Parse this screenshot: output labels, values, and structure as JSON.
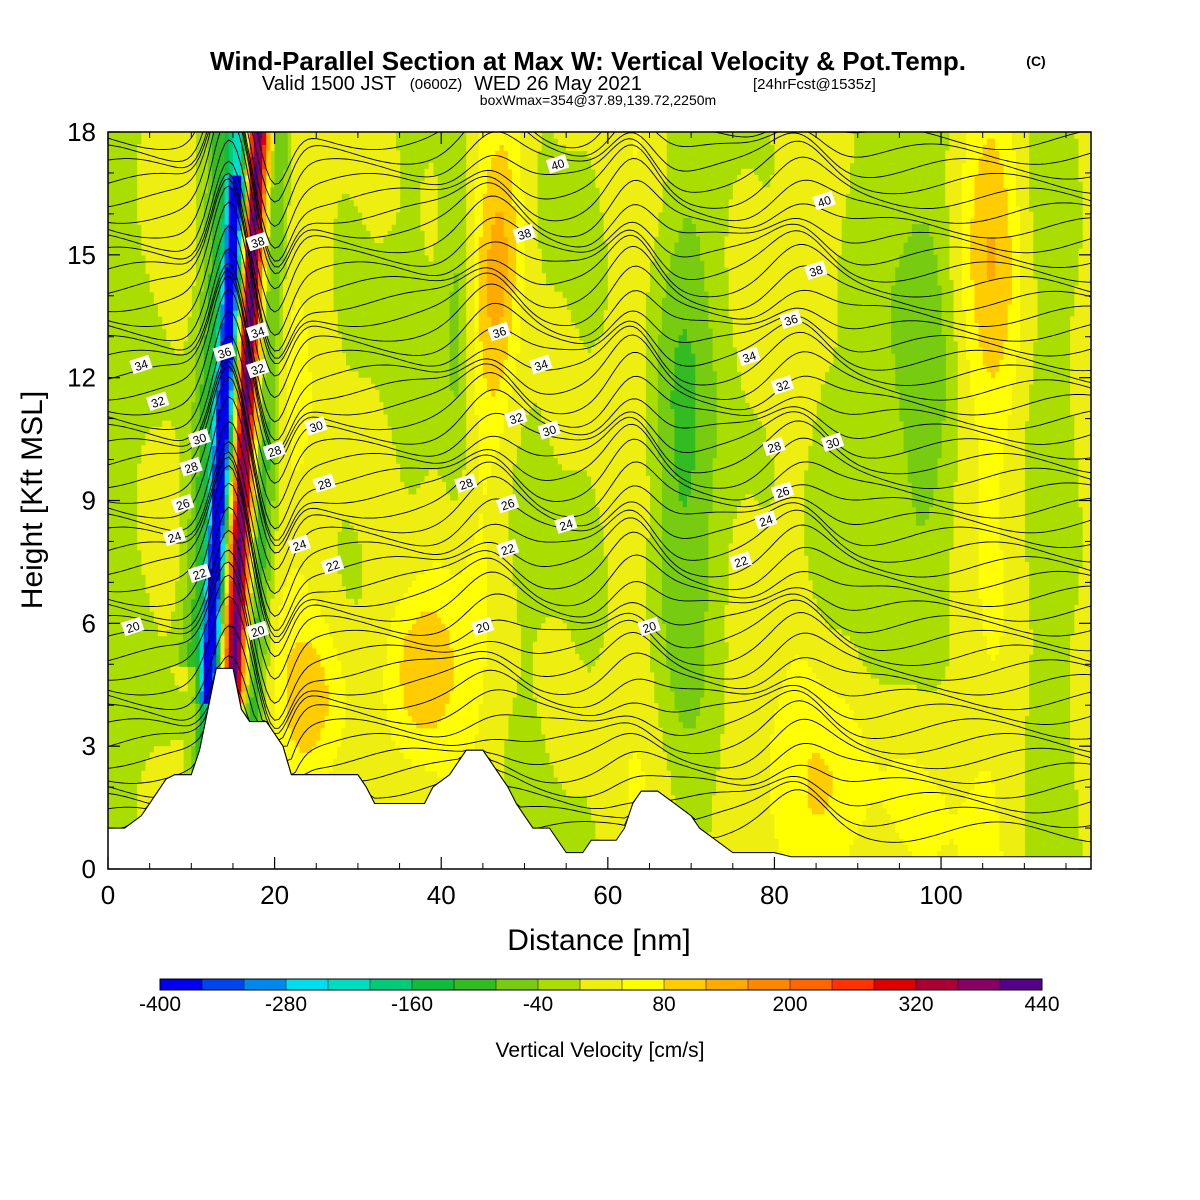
{
  "title": {
    "main": "Wind-Parallel Section at Max W: Vertical Velocity & Pot.Temp.",
    "copyright": "(C)",
    "valid_prefix": "Valid 1500 JST",
    "valid_zulu": "(0600Z)",
    "valid_date": "WED 26 May 2021",
    "forecast": "[24hrFcst@1535z]",
    "boxmax": "boxWmax=354@37.89,139.72,2250m"
  },
  "chart_data": {
    "type": "heatmap",
    "xlabel": "Distance [nm]",
    "ylabel": "Height [Kft MSL]",
    "xlim": [
      0,
      118
    ],
    "ylim": [
      0,
      18
    ],
    "x_ticks": [
      0,
      20,
      40,
      60,
      80,
      100
    ],
    "y_ticks": [
      0,
      3,
      6,
      9,
      12,
      15,
      18
    ],
    "colorbar": {
      "title": "Vertical Velocity [cm/s]",
      "min": -400,
      "max": 440,
      "step": 40,
      "tick_labels": [
        "-400",
        "-280",
        "-160",
        "-40",
        "80",
        "200",
        "320",
        "440"
      ],
      "colors": [
        "#0000ee",
        "#0044ee",
        "#0088ee",
        "#00ddee",
        "#00dcc0",
        "#00cc77",
        "#10bb40",
        "#33bb22",
        "#77cc11",
        "#aadd00",
        "#eeee11",
        "#ffff00",
        "#ffcc00",
        "#ffaa00",
        "#ff8800",
        "#ff6600",
        "#ff3300",
        "#dd0000",
        "#aa0033",
        "#880066",
        "#550088"
      ]
    },
    "terrain_kft": [
      [
        0,
        1.0
      ],
      [
        2,
        1.0
      ],
      [
        4,
        1.3
      ],
      [
        5,
        1.6
      ],
      [
        6,
        1.9
      ],
      [
        7,
        2.2
      ],
      [
        8,
        2.3
      ],
      [
        10,
        2.3
      ],
      [
        11,
        2.9
      ],
      [
        12,
        3.9
      ],
      [
        13,
        4.9
      ],
      [
        15,
        4.9
      ],
      [
        16,
        3.9
      ],
      [
        17,
        3.6
      ],
      [
        19,
        3.6
      ],
      [
        20,
        3.3
      ],
      [
        21,
        3.0
      ],
      [
        22,
        2.3
      ],
      [
        30,
        2.3
      ],
      [
        31,
        2.0
      ],
      [
        32,
        1.6
      ],
      [
        38,
        1.6
      ],
      [
        39,
        2.0
      ],
      [
        41,
        2.3
      ],
      [
        42,
        2.6
      ],
      [
        43,
        2.9
      ],
      [
        45,
        2.9
      ],
      [
        46,
        2.6
      ],
      [
        47,
        2.3
      ],
      [
        48,
        2.0
      ],
      [
        49,
        1.6
      ],
      [
        50,
        1.3
      ],
      [
        51,
        1.0
      ],
      [
        53,
        1.0
      ],
      [
        54,
        0.7
      ],
      [
        55,
        0.4
      ],
      [
        57,
        0.4
      ],
      [
        58,
        0.7
      ],
      [
        61,
        0.7
      ],
      [
        62,
        1.0
      ],
      [
        63,
        1.6
      ],
      [
        64,
        1.9
      ],
      [
        66,
        1.9
      ],
      [
        68,
        1.6
      ],
      [
        70,
        1.3
      ],
      [
        71,
        1.0
      ],
      [
        73,
        0.7
      ],
      [
        75,
        0.4
      ],
      [
        80,
        0.4
      ],
      [
        82,
        0.3
      ],
      [
        118,
        0.3
      ]
    ],
    "theta_labels": [
      "20",
      "22",
      "24",
      "26",
      "28",
      "30",
      "32",
      "34",
      "36",
      "38",
      "40"
    ],
    "contour_label_positions": [
      [
        3,
        5.9,
        "20"
      ],
      [
        18,
        5.8,
        "20"
      ],
      [
        45,
        5.9,
        "20"
      ],
      [
        65,
        5.9,
        "20"
      ],
      [
        11,
        7.2,
        "22"
      ],
      [
        27,
        7.4,
        "22"
      ],
      [
        48,
        7.8,
        "22"
      ],
      [
        76,
        7.5,
        "22"
      ],
      [
        8,
        8.1,
        "24"
      ],
      [
        23,
        7.9,
        "24"
      ],
      [
        55,
        8.4,
        "24"
      ],
      [
        79,
        8.5,
        "24"
      ],
      [
        9,
        8.9,
        "26"
      ],
      [
        48,
        8.9,
        "26"
      ],
      [
        81,
        9.2,
        "26"
      ],
      [
        10,
        9.8,
        "28"
      ],
      [
        20,
        10.2,
        "28"
      ],
      [
        43,
        9.4,
        "28"
      ],
      [
        26,
        9.4,
        "28"
      ],
      [
        80,
        10.3,
        "28"
      ],
      [
        11,
        10.5,
        "30"
      ],
      [
        25,
        10.8,
        "30"
      ],
      [
        53,
        10.7,
        "30"
      ],
      [
        87,
        10.4,
        "30"
      ],
      [
        6,
        11.4,
        "32"
      ],
      [
        18,
        12.2,
        "32"
      ],
      [
        49,
        11.0,
        "32"
      ],
      [
        81,
        11.8,
        "32"
      ],
      [
        4,
        12.3,
        "34"
      ],
      [
        18,
        13.1,
        "34"
      ],
      [
        52,
        12.3,
        "34"
      ],
      [
        77,
        12.5,
        "34"
      ],
      [
        14,
        12.6,
        "36"
      ],
      [
        47,
        13.1,
        "36"
      ],
      [
        82,
        13.4,
        "36"
      ],
      [
        18,
        15.3,
        "38"
      ],
      [
        50,
        15.5,
        "38"
      ],
      [
        85,
        14.6,
        "38"
      ],
      [
        54,
        17.2,
        "40"
      ],
      [
        86,
        16.3,
        "40"
      ]
    ]
  }
}
